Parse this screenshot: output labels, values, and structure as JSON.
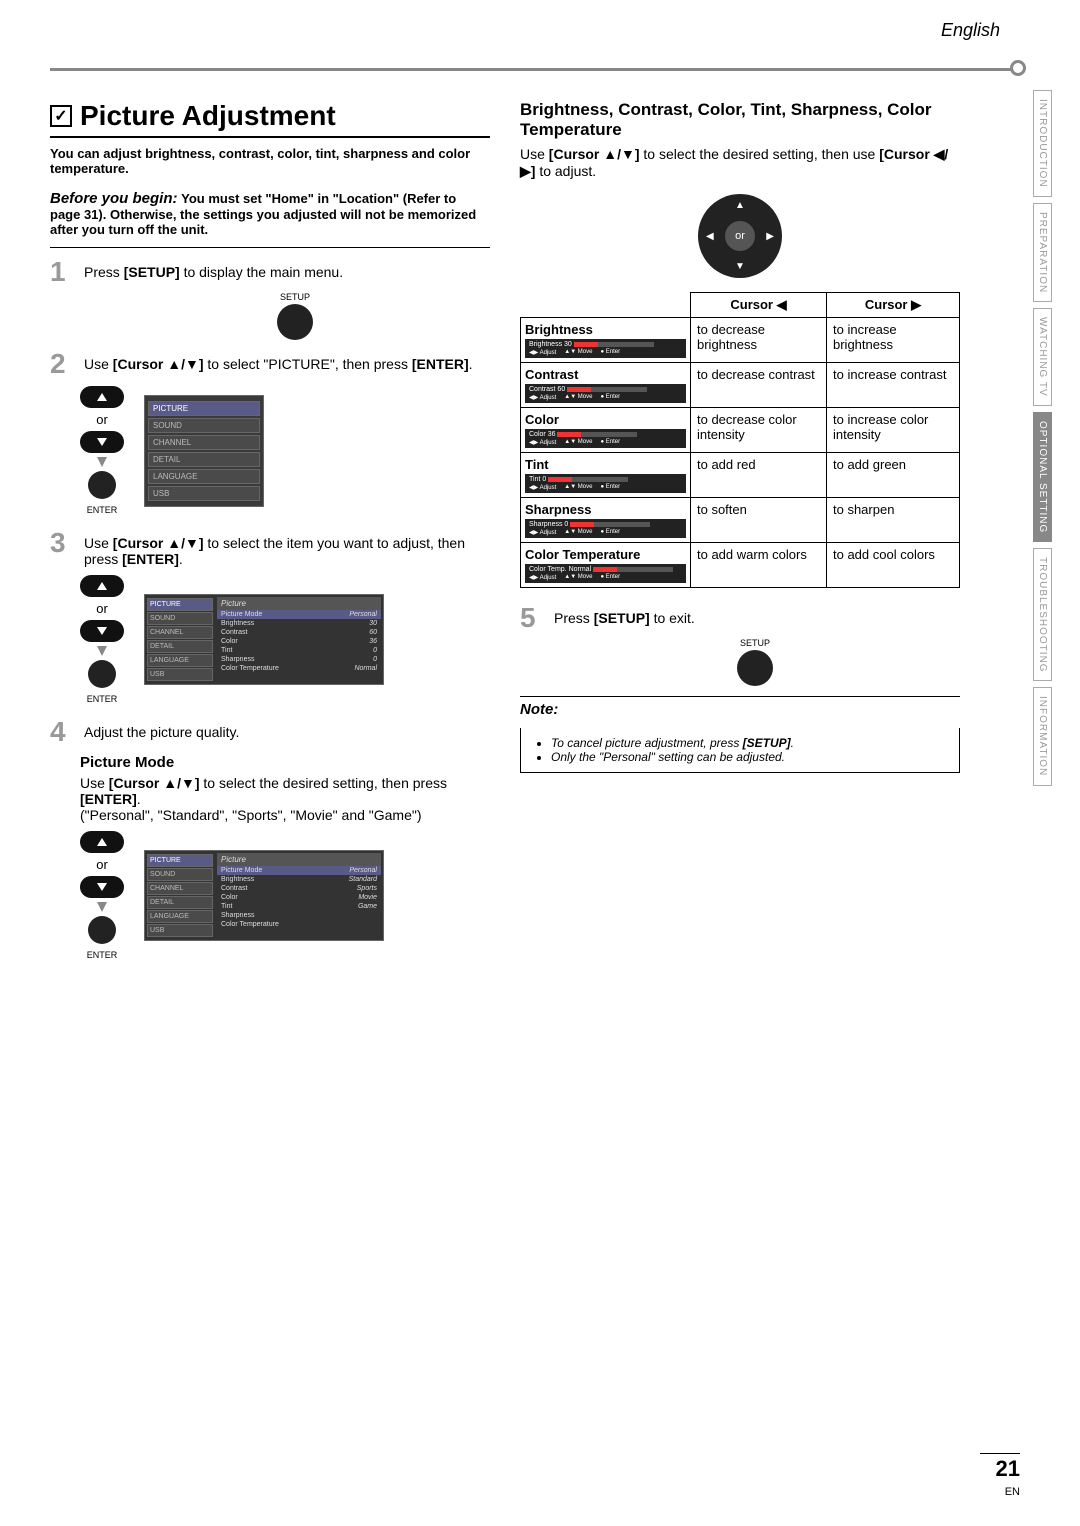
{
  "header": {
    "language": "English"
  },
  "side_tabs": [
    {
      "label": "INTRODUCTION",
      "active": false
    },
    {
      "label": "PREPARATION",
      "active": false
    },
    {
      "label": "WATCHING TV",
      "active": false
    },
    {
      "label": "OPTIONAL SETTING",
      "active": true
    },
    {
      "label": "TROUBLESHOOTING",
      "active": false
    },
    {
      "label": "INFORMATION",
      "active": false
    }
  ],
  "title": "Picture Adjustment",
  "check_mark": "✓",
  "intro": "You can adjust brightness, contrast, color, tint, sharpness and color temperature.",
  "before": {
    "label": "Before you begin:",
    "text": "You must set \"Home\" in \"Location\" (Refer to page 31). Otherwise, the settings you adjusted will not be memorized after you turn off the unit."
  },
  "steps": {
    "s1": {
      "num": "1",
      "text_a": "Press ",
      "bold": "[SETUP]",
      "text_b": " to display the main menu.",
      "btn_label": "SETUP"
    },
    "s2": {
      "num": "2",
      "text_a": "Use ",
      "bold1": "[Cursor ▲/▼]",
      "text_b": " to select \"PICTURE\", then press ",
      "bold2": "[ENTER]",
      "text_c": "."
    },
    "s3": {
      "num": "3",
      "text_a": "Use ",
      "bold1": "[Cursor ▲/▼]",
      "text_b": " to select the item you want to adjust, then press ",
      "bold2": "[ENTER]",
      "text_c": "."
    },
    "s4": {
      "num": "4",
      "text": "Adjust the picture quality."
    },
    "s5": {
      "num": "5",
      "text_a": "Press ",
      "bold": "[SETUP]",
      "text_b": " to exit.",
      "btn_label": "SETUP"
    }
  },
  "or": "or",
  "enter_label": "ENTER",
  "osd_side_items": [
    "PICTURE",
    "SOUND",
    "CHANNEL",
    "DETAIL",
    "LANGUAGE",
    "USB"
  ],
  "osd_picture": {
    "title": "Picture",
    "rows": [
      {
        "k": "Picture Mode",
        "v": "Personal"
      },
      {
        "k": "Brightness",
        "v": "30"
      },
      {
        "k": "Contrast",
        "v": "60"
      },
      {
        "k": "Color",
        "v": "36"
      },
      {
        "k": "Tint",
        "v": "0"
      },
      {
        "k": "Sharpness",
        "v": "0"
      },
      {
        "k": "Color Temperature",
        "v": "Normal"
      }
    ]
  },
  "osd_mode_options": [
    "Personal",
    "Standard",
    "Sports",
    "Movie",
    "Game"
  ],
  "picture_mode": {
    "heading": "Picture Mode",
    "text_a": "Use ",
    "bold": "[Cursor ▲/▼]",
    "text_b": " to select the desired setting, then press ",
    "bold2": "[ENTER]",
    "text_c": ".",
    "options": "(\"Personal\", \"Standard\", \"Sports\", \"Movie\" and \"Game\")"
  },
  "right": {
    "heading": "Brightness, Contrast, Color, Tint, Sharpness, Color Temperature",
    "text_a": "Use ",
    "bold1": "[Cursor ▲/▼]",
    "text_b": " to select the desired setting, then use ",
    "bold2": "[Cursor ◀/▶]",
    "text_c": " to adjust."
  },
  "adj_table": {
    "head_left": "Cursor ◀",
    "head_right": "Cursor ▶",
    "rows": [
      {
        "name": "Brightness",
        "val": "30",
        "left": "to decrease brightness",
        "right": "to increase brightness"
      },
      {
        "name": "Contrast",
        "val": "60",
        "left": "to decrease contrast",
        "right": "to increase contrast"
      },
      {
        "name": "Color",
        "val": "36",
        "left": "to decrease color intensity",
        "right": "to increase color intensity"
      },
      {
        "name": "Tint",
        "val": "0",
        "left": "to add red",
        "right": "to add green"
      },
      {
        "name": "Sharpness",
        "val": "0",
        "left": "to soften",
        "right": "to sharpen"
      },
      {
        "name": "Color Temperature",
        "val": "Normal",
        "left": "to add warm colors",
        "right": "to add cool colors",
        "label2": "Color Temp."
      }
    ],
    "osd_btm": {
      "a": "Adjust",
      "b": "Move",
      "c": "Enter"
    }
  },
  "note": {
    "title": "Note:",
    "items": [
      "To cancel picture adjustment, press [SETUP].",
      "Only the \"Personal\" setting can be adjusted."
    ]
  },
  "footer": {
    "page": "21",
    "lang": "EN"
  }
}
